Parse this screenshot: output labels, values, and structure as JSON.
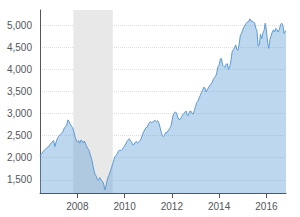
{
  "chart_data": {
    "type": "area",
    "color": "#5b9bd5",
    "grid": true,
    "xlim": [
      2006.42,
      2016.83
    ],
    "xticks": [
      2008,
      2010,
      2012,
      2014,
      2016
    ],
    "ylim": [
      1200,
      5350
    ],
    "yticks": [
      {
        "value": 1500,
        "label": "1,500"
      },
      {
        "value": 2000,
        "label": "2,000"
      },
      {
        "value": 2500,
        "label": "2,500"
      },
      {
        "value": 3000,
        "label": "3,000"
      },
      {
        "value": 3500,
        "label": "3,500"
      },
      {
        "value": 4000,
        "label": "4,000"
      },
      {
        "value": 4500,
        "label": "4,500"
      },
      {
        "value": 5000,
        "label": "5,000"
      }
    ],
    "spans": [
      {
        "start": 2007.83,
        "end": 2009.5,
        "color": "#e8e8e8"
      }
    ],
    "x": [
      2006.42,
      2006.5,
      2006.6,
      2006.7,
      2006.8,
      2006.9,
      2007.0,
      2007.05,
      2007.1,
      2007.15,
      2007.2,
      2007.25,
      2007.3,
      2007.35,
      2007.4,
      2007.45,
      2007.5,
      2007.55,
      2007.6,
      2007.65,
      2007.7,
      2007.75,
      2007.8,
      2007.83,
      2007.85,
      2007.9,
      2007.92,
      2007.95,
      2008.0,
      2008.05,
      2008.1,
      2008.15,
      2008.2,
      2008.25,
      2008.3,
      2008.35,
      2008.4,
      2008.45,
      2008.5,
      2008.55,
      2008.6,
      2008.65,
      2008.7,
      2008.75,
      2008.8,
      2008.85,
      2008.9,
      2008.95,
      2009.0,
      2009.05,
      2009.1,
      2009.13,
      2009.15,
      2009.17,
      2009.2,
      2009.22,
      2009.25,
      2009.3,
      2009.35,
      2009.4,
      2009.45,
      2009.5,
      2009.55,
      2009.6,
      2009.65,
      2009.7,
      2009.75,
      2009.8,
      2009.85,
      2009.9,
      2009.95,
      2010.0,
      2010.05,
      2010.1,
      2010.15,
      2010.2,
      2010.25,
      2010.3,
      2010.35,
      2010.4,
      2010.45,
      2010.5,
      2010.55,
      2010.6,
      2010.65,
      2010.7,
      2010.75,
      2010.8,
      2010.85,
      2010.9,
      2010.95,
      2011.0,
      2011.05,
      2011.1,
      2011.15,
      2011.2,
      2011.25,
      2011.3,
      2011.35,
      2011.4,
      2011.45,
      2011.5,
      2011.55,
      2011.6,
      2011.65,
      2011.7,
      2011.75,
      2011.8,
      2011.85,
      2011.9,
      2011.95,
      2012.0,
      2012.05,
      2012.1,
      2012.15,
      2012.2,
      2012.25,
      2012.3,
      2012.35,
      2012.4,
      2012.45,
      2012.5,
      2012.55,
      2012.6,
      2012.65,
      2012.7,
      2012.75,
      2012.8,
      2012.85,
      2012.9,
      2012.95,
      2013.0,
      2013.05,
      2013.1,
      2013.15,
      2013.2,
      2013.25,
      2013.3,
      2013.35,
      2013.4,
      2013.45,
      2013.5,
      2013.55,
      2013.6,
      2013.65,
      2013.7,
      2013.75,
      2013.8,
      2013.85,
      2013.9,
      2013.95,
      2014.0,
      2014.05,
      2014.1,
      2014.15,
      2014.2,
      2014.25,
      2014.3,
      2014.35,
      2014.4,
      2014.45,
      2014.5,
      2014.55,
      2014.6,
      2014.65,
      2014.7,
      2014.75,
      2014.8,
      2014.85,
      2014.9,
      2014.95,
      2015.0,
      2015.05,
      2015.1,
      2015.15,
      2015.2,
      2015.25,
      2015.3,
      2015.35,
      2015.4,
      2015.45,
      2015.5,
      2015.55,
      2015.6,
      2015.65,
      2015.7,
      2015.75,
      2015.8,
      2015.85,
      2015.9,
      2015.95,
      2016.0,
      2016.05,
      2016.1,
      2016.15,
      2016.2,
      2016.25,
      2016.3,
      2016.35,
      2016.4,
      2016.45,
      2016.5,
      2016.55,
      2016.6,
      2016.65,
      2016.7,
      2016.75,
      2016.8,
      2016.83
    ],
    "values": [
      2050,
      2100,
      2170,
      2220,
      2260,
      2340,
      2390,
      2250,
      2350,
      2430,
      2480,
      2510,
      2540,
      2560,
      2600,
      2680,
      2700,
      2740,
      2860,
      2820,
      2760,
      2720,
      2680,
      2630,
      2600,
      2480,
      2460,
      2400,
      2360,
      2390,
      2330,
      2400,
      2380,
      2340,
      2380,
      2310,
      2250,
      2200,
      2160,
      2060,
      1980,
      1850,
      1720,
      1620,
      1580,
      1500,
      1490,
      1550,
      1500,
      1470,
      1430,
      1370,
      1290,
      1270,
      1340,
      1380,
      1460,
      1560,
      1620,
      1700,
      1780,
      1870,
      1960,
      2030,
      2060,
      2100,
      2160,
      2170,
      2160,
      2190,
      2230,
      2270,
      2310,
      2370,
      2400,
      2430,
      2380,
      2350,
      2290,
      2300,
      2350,
      2370,
      2330,
      2360,
      2380,
      2430,
      2510,
      2580,
      2630,
      2680,
      2690,
      2750,
      2800,
      2820,
      2790,
      2810,
      2840,
      2840,
      2820,
      2840,
      2790,
      2690,
      2580,
      2500,
      2480,
      2530,
      2580,
      2570,
      2620,
      2660,
      2700,
      2810,
      2960,
      3010,
      3040,
      3010,
      2920,
      2870,
      2870,
      2910,
      2970,
      3000,
      3030,
      3060,
      2960,
      2960,
      3050,
      3060,
      3010,
      2990,
      3070,
      3160,
      3250,
      3280,
      3350,
      3410,
      3480,
      3530,
      3600,
      3580,
      3490,
      3540,
      3590,
      3640,
      3660,
      3700,
      3770,
      3820,
      3840,
      3930,
      4060,
      4100,
      4240,
      4250,
      4100,
      4070,
      4050,
      4120,
      4130,
      4000,
      4070,
      4200,
      4400,
      4450,
      4490,
      4560,
      4450,
      4440,
      4580,
      4780,
      4820,
      4900,
      4960,
      5010,
      5050,
      5080,
      5090,
      5150,
      5090,
      5100,
      5070,
      5060,
      4940,
      4880,
      4530,
      4550,
      4800,
      4700,
      4820,
      4880,
      5050,
      4900,
      4620,
      4480,
      4680,
      4770,
      4850,
      4900,
      4850,
      4930,
      4900,
      4850,
      4910,
      5020,
      5050,
      4990,
      4820,
      4870,
      4880
    ]
  }
}
